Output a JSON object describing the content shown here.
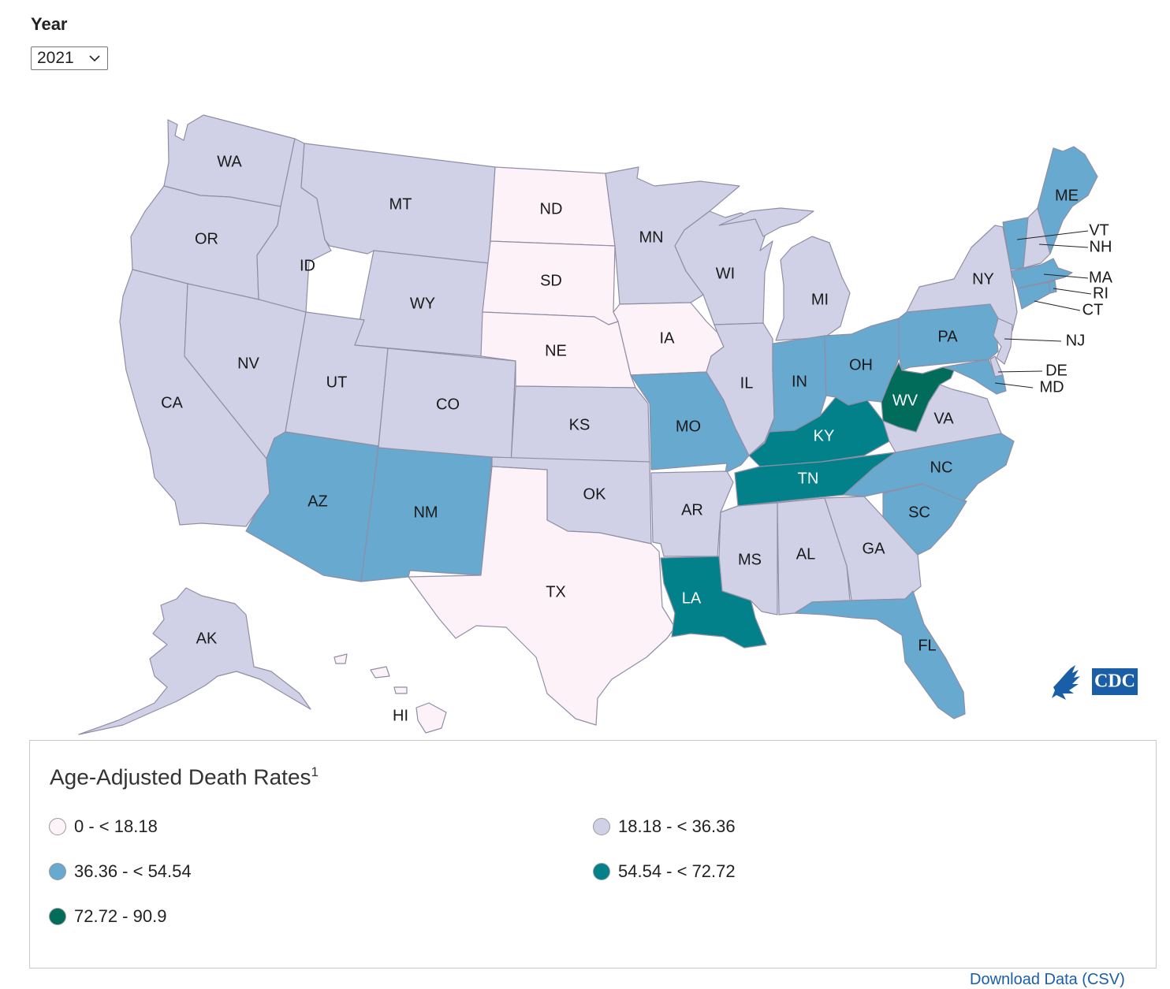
{
  "controls": {
    "year_label": "Year",
    "year_value": "2021"
  },
  "palette": {
    "c0": "#fdf2f8",
    "c1": "#d0d1e6",
    "c2": "#67a9cf",
    "c3": "#02818a",
    "c4": "#016c59"
  },
  "legend": {
    "title": "Age-Adjusted Death Rates",
    "footnote_mark": "1",
    "classes": [
      {
        "label": "0 - < 18.18",
        "color": "#fdf2f8"
      },
      {
        "label": "18.18 - < 36.36",
        "color": "#d0d1e6"
      },
      {
        "label": "36.36 - < 54.54",
        "color": "#67a9cf"
      },
      {
        "label": "54.54 - < 72.72",
        "color": "#02818a"
      },
      {
        "label": "72.72 - 90.9",
        "color": "#016c59"
      }
    ]
  },
  "logo": {
    "text": "CDC"
  },
  "download_link": "Download Data (CSV)",
  "map_data": {
    "states": [
      {
        "code": "WA",
        "class": 1
      },
      {
        "code": "OR",
        "class": 1
      },
      {
        "code": "CA",
        "class": 1
      },
      {
        "code": "ID",
        "class": 1
      },
      {
        "code": "NV",
        "class": 1
      },
      {
        "code": "MT",
        "class": 1
      },
      {
        "code": "WY",
        "class": 1
      },
      {
        "code": "UT",
        "class": 1
      },
      {
        "code": "AZ",
        "class": 2
      },
      {
        "code": "CO",
        "class": 1
      },
      {
        "code": "NM",
        "class": 2
      },
      {
        "code": "ND",
        "class": 0
      },
      {
        "code": "SD",
        "class": 0
      },
      {
        "code": "NE",
        "class": 0
      },
      {
        "code": "KS",
        "class": 1
      },
      {
        "code": "OK",
        "class": 1
      },
      {
        "code": "TX",
        "class": 0
      },
      {
        "code": "MN",
        "class": 1
      },
      {
        "code": "IA",
        "class": 0
      },
      {
        "code": "MO",
        "class": 2
      },
      {
        "code": "AR",
        "class": 1
      },
      {
        "code": "LA",
        "class": 3
      },
      {
        "code": "WI",
        "class": 1
      },
      {
        "code": "IL",
        "class": 1
      },
      {
        "code": "MI",
        "class": 1
      },
      {
        "code": "IN",
        "class": 2
      },
      {
        "code": "OH",
        "class": 2
      },
      {
        "code": "KY",
        "class": 3
      },
      {
        "code": "TN",
        "class": 3
      },
      {
        "code": "MS",
        "class": 1
      },
      {
        "code": "AL",
        "class": 1
      },
      {
        "code": "GA",
        "class": 1
      },
      {
        "code": "FL",
        "class": 2
      },
      {
        "code": "SC",
        "class": 2
      },
      {
        "code": "NC",
        "class": 2
      },
      {
        "code": "VA",
        "class": 1
      },
      {
        "code": "WV",
        "class": 4
      },
      {
        "code": "PA",
        "class": 2
      },
      {
        "code": "NY",
        "class": 1
      },
      {
        "code": "VT",
        "class": 2
      },
      {
        "code": "NH",
        "class": 1
      },
      {
        "code": "ME",
        "class": 2
      },
      {
        "code": "MA",
        "class": 2
      },
      {
        "code": "RI",
        "class": 2
      },
      {
        "code": "CT",
        "class": 2
      },
      {
        "code": "NJ",
        "class": 1
      },
      {
        "code": "DE",
        "class": 1
      },
      {
        "code": "MD",
        "class": 2
      },
      {
        "code": "AK",
        "class": 1
      },
      {
        "code": "HI",
        "class": 0
      }
    ]
  }
}
